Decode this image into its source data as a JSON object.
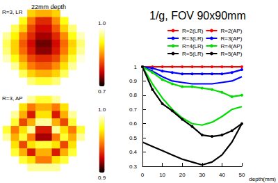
{
  "chart_data": [
    {
      "type": "heatmap",
      "title": "R=3, LR",
      "subtitle": "22mm depth",
      "tick_labels": false,
      "cells": [
        [
          null,
          null,
          null,
          0.9,
          0.88,
          0.88,
          0.9,
          null,
          null,
          null
        ],
        [
          null,
          null,
          0.93,
          0.85,
          0.8,
          0.8,
          0.86,
          0.93,
          null,
          null
        ],
        [
          null,
          0.95,
          0.9,
          0.82,
          0.78,
          0.78,
          0.83,
          0.9,
          0.96,
          null
        ],
        [
          0.97,
          0.92,
          0.85,
          0.8,
          0.76,
          0.76,
          0.8,
          0.86,
          0.93,
          0.98
        ],
        [
          0.95,
          0.9,
          0.83,
          0.78,
          0.74,
          0.74,
          0.78,
          0.84,
          0.9,
          0.96
        ],
        [
          0.96,
          0.9,
          0.84,
          0.79,
          0.75,
          0.75,
          0.79,
          0.85,
          0.91,
          0.97
        ],
        [
          0.98,
          0.93,
          0.87,
          0.82,
          0.8,
          0.8,
          0.82,
          0.88,
          0.94,
          0.99
        ],
        [
          null,
          0.97,
          0.9,
          0.85,
          0.83,
          0.83,
          0.86,
          0.91,
          0.97,
          null
        ],
        [
          null,
          null,
          0.95,
          0.9,
          0.88,
          0.88,
          0.9,
          0.95,
          null,
          null
        ],
        [
          null,
          null,
          null,
          0.96,
          0.94,
          0.94,
          0.96,
          null,
          null,
          null
        ]
      ],
      "colorbar": {
        "range": [
          0.7,
          1.0
        ],
        "ticks": [
          0.7,
          {
            "value": 1,
            "label": "1.0"
          }
        ]
      }
    },
    {
      "type": "heatmap",
      "title": "R=3, AP",
      "tick_labels": false,
      "cells": [
        [
          null,
          null,
          null,
          0.99,
          0.98,
          0.98,
          0.99,
          null,
          null,
          null
        ],
        [
          null,
          null,
          0.97,
          0.95,
          0.96,
          0.96,
          0.95,
          0.97,
          null,
          null
        ],
        [
          null,
          0.99,
          0.96,
          0.93,
          0.97,
          0.97,
          0.93,
          0.96,
          0.99,
          null
        ],
        [
          1.0,
          0.98,
          0.94,
          0.96,
          0.99,
          0.99,
          0.96,
          0.94,
          0.98,
          1.0
        ],
        [
          0.98,
          0.95,
          0.97,
          0.99,
          0.93,
          0.93,
          0.99,
          0.97,
          0.95,
          0.98
        ],
        [
          0.99,
          0.96,
          0.98,
          0.95,
          0.92,
          0.92,
          0.95,
          0.98,
          0.96,
          0.99
        ],
        [
          1.0,
          0.97,
          0.94,
          0.97,
          0.98,
          0.98,
          0.97,
          0.94,
          0.97,
          1.0
        ],
        [
          null,
          0.98,
          0.96,
          0.93,
          0.96,
          0.96,
          0.93,
          0.96,
          0.98,
          null
        ],
        [
          null,
          null,
          0.98,
          0.97,
          0.95,
          0.95,
          0.97,
          0.98,
          null,
          null
        ],
        [
          null,
          null,
          null,
          0.99,
          0.99,
          0.99,
          0.99,
          null,
          null,
          null
        ]
      ],
      "colorbar": {
        "range": [
          0.9,
          1.0
        ],
        "ticks": [
          0.9,
          {
            "value": 1,
            "label": "1.0"
          }
        ]
      }
    },
    {
      "type": "line",
      "title": "1/g, FOV 90x90mm",
      "x_label": "depth(mm)",
      "x": [
        0,
        5,
        10,
        15,
        20,
        25,
        30,
        35,
        40,
        45,
        50
      ],
      "xlim": [
        0,
        50
      ],
      "xticks": [
        0,
        10,
        20,
        30,
        40,
        50
      ],
      "ylim": [
        0.3,
        1
      ],
      "yticks": [
        0.3,
        0.4,
        0.5,
        0.6,
        0.7,
        0.8,
        0.9,
        1
      ],
      "grid": false,
      "legend": "top",
      "series": [
        {
          "name": "R=2(LR)",
          "color": "#ff0000",
          "values": [
            1.0,
            1.0,
            1.0,
            1.0,
            1.0,
            1.0,
            1.0,
            1.0,
            1.0,
            1.0,
            1.0
          ]
        },
        {
          "name": "R=2(AP)",
          "color": "#ff0000",
          "marker": "circle",
          "values": [
            1.0,
            1.0,
            1.0,
            1.0,
            1.0,
            1.0,
            1.0,
            1.0,
            1.0,
            1.0,
            1.0
          ]
        },
        {
          "name": "R=3(LR)",
          "color": "#0000ff",
          "values": [
            1.0,
            0.97,
            0.93,
            0.9,
            0.89,
            0.88,
            0.88,
            0.88,
            0.89,
            0.9,
            0.93
          ]
        },
        {
          "name": "R=3(AP)",
          "color": "#0000ff",
          "marker": "circle",
          "values": [
            1.0,
            0.99,
            0.97,
            0.96,
            0.95,
            0.95,
            0.95,
            0.95,
            0.95,
            0.96,
            0.98
          ]
        },
        {
          "name": "R=4(LR)",
          "color": "#00dd00",
          "values": [
            1.0,
            0.88,
            0.78,
            0.7,
            0.64,
            0.6,
            0.59,
            0.61,
            0.65,
            0.7,
            0.72
          ]
        },
        {
          "name": "R=4(AP)",
          "color": "#00dd00",
          "marker": "circle",
          "values": [
            1.0,
            0.96,
            0.91,
            0.88,
            0.86,
            0.86,
            0.85,
            0.84,
            0.82,
            0.79,
            0.8
          ]
        },
        {
          "name": "R=5(LR)",
          "color": "#000000",
          "values": [
            0.47,
            0.44,
            0.41,
            0.38,
            0.35,
            0.33,
            0.31,
            0.33,
            0.38,
            0.47,
            0.6
          ]
        },
        {
          "name": "R=5(AP)",
          "color": "#000000",
          "marker": "circle",
          "values": [
            1.0,
            0.84,
            0.74,
            0.69,
            0.63,
            0.58,
            0.52,
            0.51,
            0.52,
            0.55,
            0.6
          ]
        }
      ]
    }
  ]
}
